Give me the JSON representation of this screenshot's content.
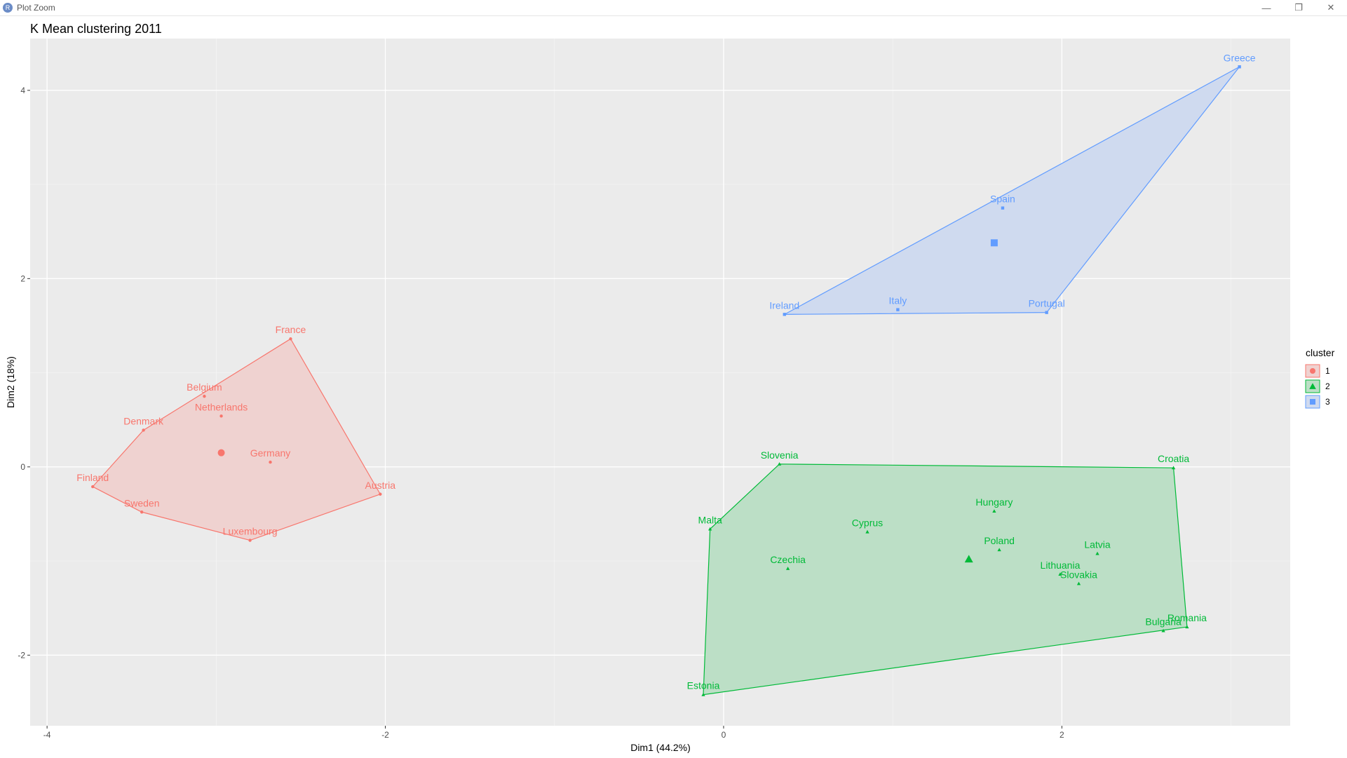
{
  "window": {
    "title": "Plot Zoom",
    "icon": "r-app-icon",
    "controls": [
      "minimize-icon",
      "restore-icon",
      "close-icon"
    ]
  },
  "chart_data": {
    "type": "scatter",
    "title": "K Mean clustering 2011",
    "xlabel": "Dim1 (44.2%)",
    "ylabel": "Dim2 (18%)",
    "xlim": [
      -4.1,
      3.35
    ],
    "ylim": [
      -2.75,
      4.55
    ],
    "xticks": [
      -4,
      -2,
      0,
      2
    ],
    "yticks": [
      -2,
      0,
      2,
      4
    ],
    "grid": true,
    "legend": {
      "title": "cluster",
      "position": "right",
      "entries": [
        "1",
        "2",
        "3"
      ]
    },
    "colors": {
      "1": "#F8766D",
      "2": "#00BA38",
      "3": "#619CFF"
    },
    "fills": {
      "1": "#EFD2D0",
      "2": "#BCDFC6",
      "3": "#CFDAEF"
    },
    "clusters": [
      {
        "name": "1",
        "shape": "circle",
        "center": [
          -2.97,
          0.15
        ],
        "hull": [
          "Finland",
          "Denmark",
          "France",
          "Austria",
          "Luxembourg",
          "Sweden"
        ],
        "points": [
          {
            "label": "France",
            "x": -2.56,
            "y": 1.36
          },
          {
            "label": "Belgium",
            "x": -3.07,
            "y": 0.75
          },
          {
            "label": "Netherlands",
            "x": -2.97,
            "y": 0.54
          },
          {
            "label": "Denmark",
            "x": -3.43,
            "y": 0.39
          },
          {
            "label": "Germany",
            "x": -2.68,
            "y": 0.05
          },
          {
            "label": "Finland",
            "x": -3.73,
            "y": -0.21
          },
          {
            "label": "Austria",
            "x": -2.03,
            "y": -0.29
          },
          {
            "label": "Sweden",
            "x": -3.44,
            "y": -0.48
          },
          {
            "label": "Luxembourg",
            "x": -2.8,
            "y": -0.78
          }
        ]
      },
      {
        "name": "2",
        "shape": "triangle",
        "center": [
          1.45,
          -0.98
        ],
        "hull": [
          "Slovenia",
          "Croatia",
          "Romania",
          "Estonia",
          "Malta"
        ],
        "points": [
          {
            "label": "Slovenia",
            "x": 0.33,
            "y": 0.03
          },
          {
            "label": "Croatia",
            "x": 2.66,
            "y": -0.01
          },
          {
            "label": "Hungary",
            "x": 1.6,
            "y": -0.47
          },
          {
            "label": "Malta",
            "x": -0.08,
            "y": -0.66
          },
          {
            "label": "Cyprus",
            "x": 0.85,
            "y": -0.69
          },
          {
            "label": "Poland",
            "x": 1.63,
            "y": -0.88
          },
          {
            "label": "Latvia",
            "x": 2.21,
            "y": -0.92
          },
          {
            "label": "Czechia",
            "x": 0.38,
            "y": -1.08
          },
          {
            "label": "Lithuania",
            "x": 1.99,
            "y": -1.14
          },
          {
            "label": "Slovakia",
            "x": 2.1,
            "y": -1.24
          },
          {
            "label": "Bulgaria",
            "x": 2.6,
            "y": -1.74
          },
          {
            "label": "Romania",
            "x": 2.74,
            "y": -1.7
          },
          {
            "label": "Estonia",
            "x": -0.12,
            "y": -2.42
          }
        ]
      },
      {
        "name": "3",
        "shape": "square",
        "center": [
          1.6,
          2.38
        ],
        "hull": [
          "Greece",
          "Portugal",
          "Ireland"
        ],
        "points": [
          {
            "label": "Greece",
            "x": 3.05,
            "y": 4.25
          },
          {
            "label": "Spain",
            "x": 1.65,
            "y": 2.75
          },
          {
            "label": "Italy",
            "x": 1.03,
            "y": 1.67
          },
          {
            "label": "Ireland",
            "x": 0.36,
            "y": 1.62
          },
          {
            "label": "Portugal",
            "x": 1.91,
            "y": 1.64
          }
        ]
      }
    ]
  }
}
